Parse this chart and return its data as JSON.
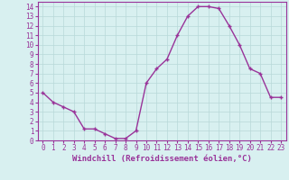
{
  "x": [
    0,
    1,
    2,
    3,
    4,
    5,
    6,
    7,
    8,
    9,
    10,
    11,
    12,
    13,
    14,
    15,
    16,
    17,
    18,
    19,
    20,
    21,
    22,
    23
  ],
  "y": [
    5.0,
    4.0,
    3.5,
    3.0,
    1.2,
    1.2,
    0.7,
    0.2,
    0.2,
    1.0,
    6.0,
    7.5,
    8.5,
    11.0,
    13.0,
    14.0,
    14.0,
    13.8,
    12.0,
    10.0,
    7.5,
    7.0,
    4.5,
    4.5
  ],
  "line_color": "#993399",
  "marker": "+",
  "markersize": 3,
  "linewidth": 1.0,
  "bg_color": "#d8f0f0",
  "xlabel": "Windchill (Refroidissement éolien,°C)",
  "xlabel_fontsize": 6.5,
  "xlim": [
    -0.5,
    23.5
  ],
  "ylim": [
    0,
    14.5
  ],
  "xticks": [
    0,
    1,
    2,
    3,
    4,
    5,
    6,
    7,
    8,
    9,
    10,
    11,
    12,
    13,
    14,
    15,
    16,
    17,
    18,
    19,
    20,
    21,
    22,
    23
  ],
  "yticks": [
    0,
    1,
    2,
    3,
    4,
    5,
    6,
    7,
    8,
    9,
    10,
    11,
    12,
    13,
    14
  ],
  "tick_fontsize": 5.5,
  "grid_color": "#b8d8d8",
  "grid_linewidth": 0.5,
  "spine_color": "#993399",
  "xlabel_fontweight": "bold"
}
